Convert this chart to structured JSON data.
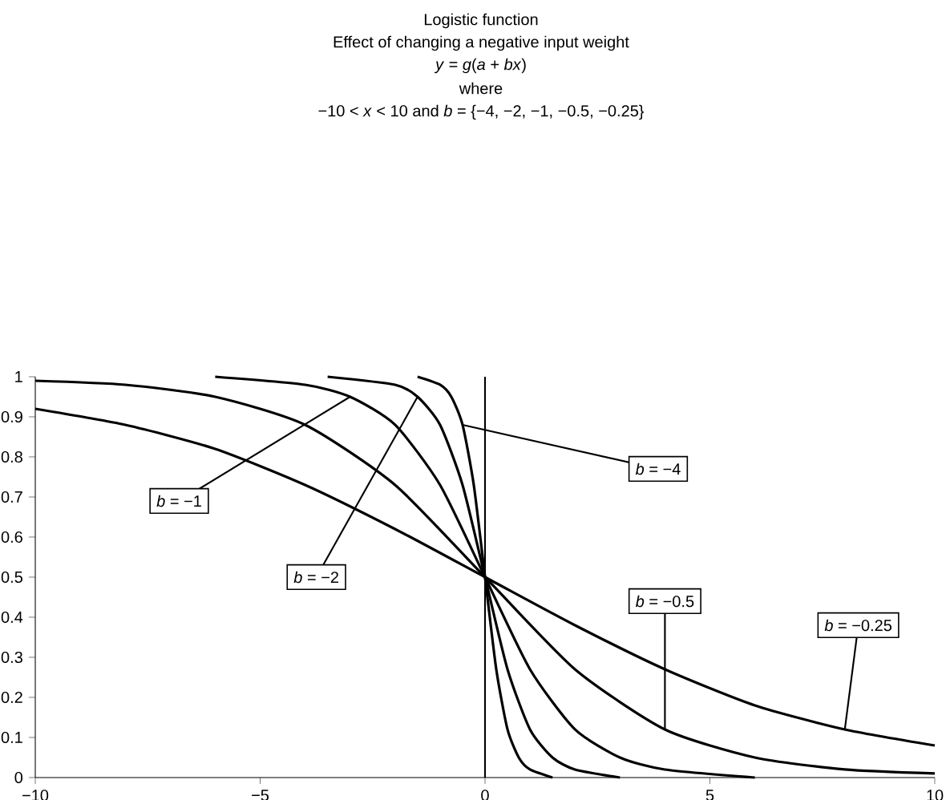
{
  "chart_data": {
    "type": "line",
    "title": "Logistic function",
    "subtitle": "Effect of changing a negative input weight",
    "annotations": [
      "*y* = *g*(*a* + *bx*)",
      "where",
      "−10 < *x* < 10 and *b* = {−4, −2, −1, −0.5, −0.25}"
    ],
    "series": [
      {
        "name": "*b* = −4",
        "color": "#000000",
        "x": [
          -1.5,
          -1,
          -0.75,
          -0.5,
          -0.25,
          0,
          0.25,
          0.5,
          0.75,
          1,
          1.5
        ],
        "values": [
          1.0,
          0.98,
          0.95,
          0.88,
          0.73,
          0.5,
          0.27,
          0.12,
          0.05,
          0.02,
          0.0
        ]
      },
      {
        "name": "*b* = −2",
        "color": "#000000",
        "x": [
          -3.5,
          -2,
          -1.5,
          -1,
          -0.5,
          0,
          0.5,
          1,
          1.5,
          2,
          3
        ],
        "values": [
          1.0,
          0.98,
          0.95,
          0.88,
          0.73,
          0.5,
          0.27,
          0.12,
          0.05,
          0.02,
          0.0
        ]
      },
      {
        "name": "*b* = −1",
        "color": "#000000",
        "x": [
          -6,
          -4,
          -3,
          -2,
          -1,
          0,
          1,
          2,
          3,
          4,
          6
        ],
        "values": [
          1.0,
          0.98,
          0.95,
          0.88,
          0.73,
          0.5,
          0.27,
          0.12,
          0.05,
          0.02,
          0.0
        ]
      },
      {
        "name": "*b* = −0.5",
        "color": "#000000",
        "x": [
          -10,
          -8,
          -6,
          -4,
          -2,
          0,
          2,
          4,
          6,
          8,
          10
        ],
        "values": [
          0.99,
          0.98,
          0.95,
          0.88,
          0.73,
          0.5,
          0.27,
          0.12,
          0.05,
          0.02,
          0.01
        ]
      },
      {
        "name": "*b* = −0.25",
        "color": "#000000",
        "x": [
          -10,
          -8,
          -6,
          -4,
          -2,
          0,
          2,
          4,
          6,
          8,
          10
        ],
        "values": [
          0.92,
          0.88,
          0.82,
          0.73,
          0.62,
          0.5,
          0.38,
          0.27,
          0.18,
          0.12,
          0.08
        ]
      }
    ],
    "xlim": [
      -10,
      10
    ],
    "ylim": [
      0,
      1
    ],
    "xticks": [
      {
        "value": -10,
        "label": "−10"
      },
      {
        "value": -5,
        "label": "−5"
      },
      0,
      5,
      10
    ],
    "yticks": [
      0,
      0.1,
      0.2,
      0.3,
      0.4,
      0.5,
      0.6,
      0.7,
      0.8,
      0.9,
      1
    ],
    "ref_lines": [
      {
        "axis": "x",
        "value": 0,
        "color": "#000000"
      }
    ],
    "marker": "none",
    "line_style": "solid"
  }
}
